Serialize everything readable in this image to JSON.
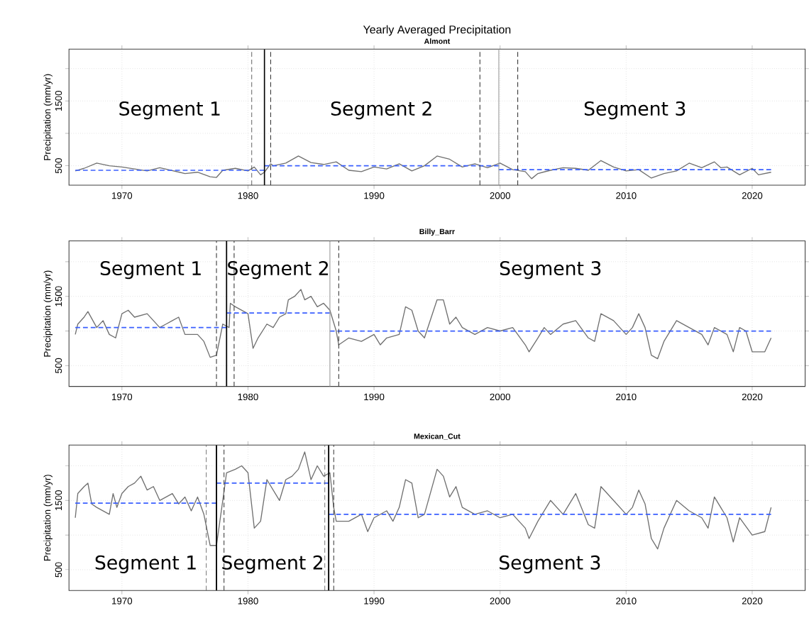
{
  "chart_data": [
    {
      "type": "line",
      "title": "Yearly Averaged Precipitation",
      "subtitle": "Almont",
      "ylabel": "Precipitation (mm/yr)",
      "xlim": [
        1965.8,
        2024.2
      ],
      "ylim": [
        200,
        2300
      ],
      "xticks": [
        1970,
        1980,
        1990,
        2000,
        2010,
        2020
      ],
      "yticks": [
        {
          "value": 500,
          "label": "500"
        },
        {
          "value": 1000,
          "label": null
        },
        {
          "value": 1500,
          "label": "1500"
        },
        {
          "value": 2000,
          "label": null
        }
      ],
      "grid": true,
      "series": [
        {
          "color": "#707070",
          "line_style": "solid",
          "x": [
            1966.3,
            1967,
            1968,
            1969,
            1970,
            1972,
            1973,
            1975,
            1976,
            1977,
            1977.5,
            1978,
            1979,
            1980,
            1980.5,
            1981,
            1981.3,
            1981.8,
            1982,
            1983,
            1984,
            1985,
            1986,
            1987,
            1988,
            1989,
            1990,
            1991,
            1992,
            1993,
            1994,
            1995,
            1996,
            1997,
            1998,
            1999,
            2000,
            2001,
            2002,
            2002.5,
            2003,
            2004,
            2005,
            2006,
            2007,
            2008,
            2009,
            2010,
            2011,
            2012,
            2013,
            2014,
            2015,
            2016,
            2017,
            2017.5,
            2018,
            2019,
            2020,
            2020.5,
            2021.5
          ],
          "values": [
            420,
            460,
            540,
            500,
            480,
            420,
            470,
            380,
            400,
            330,
            320,
            430,
            460,
            420,
            480,
            360,
            400,
            530,
            500,
            540,
            650,
            550,
            520,
            560,
            430,
            410,
            480,
            450,
            530,
            420,
            500,
            650,
            600,
            480,
            530,
            470,
            540,
            440,
            410,
            300,
            380,
            430,
            470,
            460,
            430,
            580,
            480,
            420,
            440,
            310,
            380,
            420,
            540,
            470,
            560,
            470,
            480,
            360,
            460,
            360,
            400
          ]
        },
        {
          "color": "#3a5fff",
          "line_style": "dashed",
          "x": [
            1966.3,
            1981.3
          ],
          "values": [
            430,
            430
          ]
        },
        {
          "color": "#3a5fff",
          "line_style": "dashed",
          "x": [
            1981.3,
            1999.9
          ],
          "values": [
            500,
            500
          ]
        },
        {
          "color": "#3a5fff",
          "line_style": "dashed",
          "x": [
            1999.9,
            2021.5
          ],
          "values": [
            440,
            440
          ]
        }
      ],
      "ref_lines": [
        {
          "axis": "x",
          "value": 1980.3,
          "color": "#333333",
          "line_style": "dashed"
        },
        {
          "axis": "x",
          "value": 1981.3,
          "color": "#000000",
          "line_style": "solid"
        },
        {
          "axis": "x",
          "value": 1981.8,
          "color": "#333333",
          "line_style": "dashed"
        },
        {
          "axis": "x",
          "value": 1998.4,
          "color": "#333333",
          "line_style": "dashed"
        },
        {
          "axis": "x",
          "value": 1999.9,
          "color": "#999999",
          "line_style": "solid"
        },
        {
          "axis": "x",
          "value": 2001.4,
          "color": "#333333",
          "line_style": "dashed"
        }
      ],
      "annotations": [
        "Segment 1",
        "Segment 2",
        "Segment 3"
      ]
    },
    {
      "type": "line",
      "title": "Billy_Barr",
      "ylabel": "Precipitation (mm/yr)",
      "xlim": [
        1965.8,
        2024.2
      ],
      "ylim": [
        200,
        2300
      ],
      "xticks": [
        1970,
        1980,
        1990,
        2000,
        2010,
        2020
      ],
      "yticks": [
        {
          "value": 500,
          "label": "500"
        },
        {
          "value": 1000,
          "label": null
        },
        {
          "value": 1500,
          "label": "1500"
        },
        {
          "value": 2000,
          "label": null
        }
      ],
      "grid": true,
      "series": [
        {
          "color": "#707070",
          "line_style": "solid",
          "x": [
            1966.3,
            1966.5,
            1967,
            1967.3,
            1968,
            1968.5,
            1969,
            1969.5,
            1970,
            1970.5,
            1971,
            1972,
            1973,
            1973.5,
            1974,
            1974.5,
            1975,
            1976,
            1976.5,
            1977,
            1977.5,
            1978,
            1978.5,
            1978.6,
            1979,
            1979.5,
            1980,
            1980.4,
            1980.8,
            1981.5,
            1982,
            1982.5,
            1983,
            1983.2,
            1983.7,
            1984.2,
            1984.5,
            1985,
            1985.5,
            1986,
            1986.5,
            1987,
            1987.2,
            1988,
            1989,
            1990,
            1990.5,
            1991,
            1992,
            1992.5,
            1993,
            1993.5,
            1994,
            1995,
            1995.5,
            1996,
            1996.5,
            1997,
            1998,
            1999,
            2000,
            2001,
            2002,
            2002.3,
            2003,
            2003.5,
            2004,
            2005,
            2006,
            2007,
            2007.5,
            2008,
            2009,
            2010,
            2010.5,
            2011,
            2011.5,
            2012,
            2012.5,
            2013,
            2014,
            2015,
            2016,
            2016.5,
            2017,
            2018,
            2018.5,
            2019,
            2019.5,
            2020,
            2021,
            2021.5
          ],
          "values": [
            950,
            1100,
            1200,
            1280,
            1050,
            1150,
            950,
            900,
            1250,
            1300,
            1200,
            1250,
            1050,
            1100,
            1150,
            1200,
            950,
            950,
            850,
            620,
            650,
            1100,
            1050,
            1400,
            1350,
            1300,
            1250,
            750,
            900,
            1100,
            1050,
            1200,
            1250,
            1450,
            1500,
            1600,
            1450,
            1500,
            1350,
            1400,
            1300,
            1000,
            800,
            900,
            850,
            950,
            800,
            900,
            950,
            1350,
            1300,
            1000,
            900,
            1450,
            1450,
            1100,
            1200,
            1050,
            950,
            1050,
            1000,
            1050,
            800,
            700,
            900,
            1050,
            950,
            1100,
            1150,
            900,
            850,
            1250,
            1150,
            950,
            1050,
            1250,
            1050,
            650,
            600,
            850,
            1150,
            1050,
            950,
            800,
            1050,
            950,
            700,
            1050,
            1000,
            700,
            700,
            900
          ]
        },
        {
          "color": "#3a5fff",
          "line_style": "dashed",
          "x": [
            1966.3,
            1978.3
          ],
          "values": [
            1050,
            1050
          ]
        },
        {
          "color": "#3a5fff",
          "line_style": "dashed",
          "x": [
            1978.3,
            1986.5
          ],
          "values": [
            1260,
            1260
          ]
        },
        {
          "color": "#3a5fff",
          "line_style": "dashed",
          "x": [
            1986.5,
            2021.5
          ],
          "values": [
            1000,
            1000
          ]
        }
      ],
      "ref_lines": [
        {
          "axis": "x",
          "value": 1977.5,
          "color": "#333333",
          "line_style": "dashed"
        },
        {
          "axis": "x",
          "value": 1978.3,
          "color": "#000000",
          "line_style": "solid"
        },
        {
          "axis": "x",
          "value": 1978.9,
          "color": "#333333",
          "line_style": "dashed"
        },
        {
          "axis": "x",
          "value": 1986.5,
          "color": "#999999",
          "line_style": "solid"
        },
        {
          "axis": "x",
          "value": 1987.2,
          "color": "#333333",
          "line_style": "dashed"
        }
      ],
      "annotations": [
        "Segment 1",
        "Segment 2",
        "Segment 3"
      ]
    },
    {
      "type": "line",
      "title": "Mexican_Cut",
      "ylabel": "Precipitation (mm/yr)",
      "xlim": [
        1965.8,
        2024.2
      ],
      "ylim": [
        200,
        2300
      ],
      "xticks": [
        1970,
        1980,
        1990,
        2000,
        2010,
        2020
      ],
      "yticks": [
        {
          "value": 500,
          "label": "500"
        },
        {
          "value": 1000,
          "label": null
        },
        {
          "value": 1500,
          "label": "1500"
        },
        {
          "value": 2000,
          "label": null
        }
      ],
      "grid": true,
      "series": [
        {
          "color": "#707070",
          "line_style": "solid",
          "x": [
            1966.3,
            1966.5,
            1967,
            1967.3,
            1967.6,
            1968,
            1968.5,
            1969,
            1969.3,
            1969.6,
            1970,
            1970.5,
            1971,
            1971.5,
            1972,
            1972.5,
            1973,
            1974,
            1974.5,
            1975,
            1975.5,
            1976,
            1976.5,
            1977,
            1977.5,
            1978,
            1978.3,
            1979,
            1979.5,
            1980,
            1980.5,
            1981,
            1981.5,
            1982,
            1982.5,
            1983,
            1983.5,
            1984,
            1984.5,
            1985,
            1985.5,
            1986,
            1986.5,
            1986.8,
            1987,
            1988,
            1989,
            1989.5,
            1990,
            1991,
            1991.5,
            1992,
            1992.5,
            1993,
            1993.5,
            1994,
            1995,
            1995.5,
            1996,
            1996.5,
            1997,
            1998,
            1999,
            2000,
            2001,
            2002,
            2002.3,
            2003,
            2004,
            2005,
            2006,
            2007,
            2007.5,
            2008,
            2009,
            2010,
            2010.5,
            2011,
            2011.5,
            2012,
            2012.5,
            2013,
            2014,
            2015,
            2016,
            2016.5,
            2017,
            2018,
            2018.5,
            2019,
            2020,
            2021,
            2021.5
          ],
          "values": [
            1250,
            1600,
            1700,
            1750,
            1450,
            1400,
            1350,
            1300,
            1600,
            1400,
            1600,
            1700,
            1750,
            1850,
            1650,
            1700,
            1500,
            1600,
            1450,
            1550,
            1350,
            1550,
            1300,
            850,
            850,
            1500,
            1900,
            1950,
            2000,
            1900,
            1100,
            1200,
            1800,
            1650,
            1500,
            1800,
            1850,
            1950,
            2200,
            1800,
            2000,
            1850,
            1900,
            1400,
            1200,
            1200,
            1300,
            1050,
            1250,
            1350,
            1200,
            1400,
            1800,
            1750,
            1250,
            1300,
            1950,
            1850,
            1550,
            1700,
            1400,
            1300,
            1350,
            1250,
            1300,
            1100,
            950,
            1200,
            1500,
            1300,
            1600,
            1150,
            1100,
            1700,
            1500,
            1300,
            1400,
            1650,
            1450,
            950,
            800,
            1100,
            1500,
            1350,
            1250,
            1100,
            1550,
            1250,
            900,
            1250,
            1000,
            1050,
            1400
          ]
        },
        {
          "color": "#3a5fff",
          "line_style": "dashed",
          "x": [
            1966.3,
            1977.5
          ],
          "values": [
            1460,
            1460
          ]
        },
        {
          "color": "#3a5fff",
          "line_style": "dashed",
          "x": [
            1977.5,
            1986.4
          ],
          "values": [
            1750,
            1750
          ]
        },
        {
          "color": "#3a5fff",
          "line_style": "dashed",
          "x": [
            1986.4,
            2021.5
          ],
          "values": [
            1300,
            1300
          ]
        }
      ],
      "ref_lines": [
        {
          "axis": "x",
          "value": 1976.7,
          "color": "#555555",
          "line_style": "dashed"
        },
        {
          "axis": "x",
          "value": 1977.5,
          "color": "#000000",
          "line_style": "solid"
        },
        {
          "axis": "x",
          "value": 1978.1,
          "color": "#333333",
          "line_style": "dashed"
        },
        {
          "axis": "x",
          "value": 1986.1,
          "color": "#555555",
          "line_style": "dashed"
        },
        {
          "axis": "x",
          "value": 1986.4,
          "color": "#000000",
          "line_style": "solid"
        },
        {
          "axis": "x",
          "value": 1986.8,
          "color": "#333333",
          "line_style": "dashed"
        }
      ],
      "annotations": [
        "Segment 1",
        "Segment 2",
        "Segment 3"
      ]
    }
  ]
}
